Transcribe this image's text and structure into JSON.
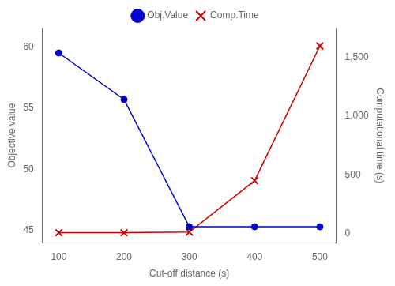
{
  "chart_data": {
    "type": "line",
    "xlabel": "Cut-off distance (s)",
    "ylabel": "Objective value",
    "y2label": "Computational time (s)",
    "x": [
      100,
      200,
      300,
      400,
      500
    ],
    "series": [
      {
        "name": "Obj.Value",
        "color": "#0000cc",
        "marker": "circle",
        "values": [
          59.5,
          55.7,
          45.3,
          45.3,
          45.3
        ]
      },
      {
        "name": "Comp.Time",
        "color": "#cc0000",
        "marker": "x",
        "axis": "y2",
        "values": [
          5,
          5,
          10,
          450,
          1600
        ]
      }
    ],
    "xlim": [
      75,
      525
    ],
    "xticks": [
      100,
      200,
      300,
      400,
      500
    ],
    "ylim": [
      44.0,
      61.5
    ],
    "yticks": [
      45,
      50,
      55,
      60
    ],
    "y2lim": [
      -80,
      1750
    ],
    "y2ticks": [
      0,
      500,
      {
        "value": 1000,
        "label": "1,000"
      },
      {
        "value": 1500,
        "label": "1,500"
      }
    ],
    "grid": false,
    "legend": "top"
  }
}
